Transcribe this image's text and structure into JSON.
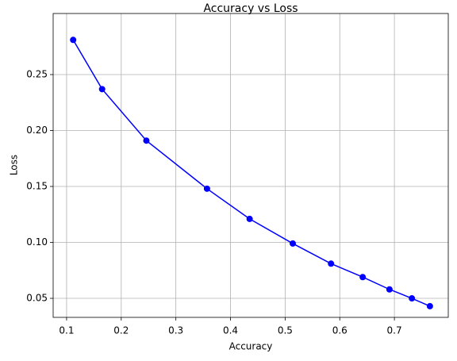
{
  "chart_data": {
    "type": "line",
    "title": "Accuracy vs Loss",
    "x_label": "Accuracy",
    "y_label": "Loss",
    "x": [
      0.112,
      0.165,
      0.246,
      0.357,
      0.435,
      0.514,
      0.584,
      0.642,
      0.691,
      0.732,
      0.765
    ],
    "series": [
      {
        "name": "Loss",
        "color": "#0000ff",
        "values": [
          0.281,
          0.237,
          0.191,
          0.148,
          0.121,
          0.099,
          0.081,
          0.069,
          0.058,
          0.05,
          0.043
        ]
      }
    ],
    "xlim": [
      0.0754,
      0.7986
    ],
    "xticks": [
      0.1,
      0.2,
      0.3,
      0.4,
      0.5,
      0.6,
      0.7
    ],
    "ylim": [
      0.033,
      0.3046
    ],
    "yticks": [
      0.05,
      {
        "value": 0.1,
        "label": "0.10"
      },
      0.15,
      {
        "value": 0.2,
        "label": "0.20"
      },
      0.25
    ],
    "grid": true,
    "marker": "circle"
  }
}
